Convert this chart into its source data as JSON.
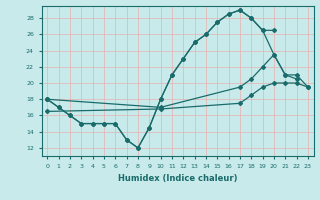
{
  "xlabel": "Humidex (Indice chaleur)",
  "xlim": [
    -0.5,
    23.5
  ],
  "ylim": [
    11,
    29.5
  ],
  "yticks": [
    12,
    14,
    16,
    18,
    20,
    22,
    24,
    26,
    28
  ],
  "xticks": [
    0,
    1,
    2,
    3,
    4,
    5,
    6,
    7,
    8,
    9,
    10,
    11,
    12,
    13,
    14,
    15,
    16,
    17,
    18,
    19,
    20,
    21,
    22,
    23
  ],
  "bg_color": "#c8eaea",
  "grid_color": "#e8b0b0",
  "line_color": "#1a6b6b",
  "line1_x": [
    0,
    1,
    2,
    3,
    4,
    5,
    6,
    7,
    8,
    9,
    10,
    11,
    12,
    13,
    14,
    15,
    16,
    17,
    18,
    19,
    20,
    21,
    22
  ],
  "line1_y": [
    18,
    17,
    16,
    15,
    15,
    15,
    15,
    13,
    12,
    14.5,
    18,
    21,
    23,
    25,
    26,
    27.5,
    28.5,
    29,
    28,
    26.5,
    23.5,
    21,
    20.5
  ],
  "line2_x": [
    0,
    1,
    2,
    3,
    4,
    5,
    6,
    7,
    8,
    9,
    10,
    11,
    12,
    13,
    14,
    15,
    16,
    17,
    18,
    19,
    20
  ],
  "line2_y": [
    18,
    17,
    16,
    15,
    15,
    15,
    15,
    13,
    12,
    14.5,
    18,
    21,
    23,
    25,
    26,
    27.5,
    28.5,
    29,
    28,
    26.5,
    26.5
  ],
  "line3_x": [
    0,
    10,
    17,
    18,
    19,
    20,
    21,
    22,
    23
  ],
  "line3_y": [
    18,
    17,
    19.5,
    20.5,
    22,
    23.5,
    21,
    21,
    19.5
  ],
  "line4_x": [
    0,
    10,
    17,
    18,
    19,
    20,
    21,
    22,
    23
  ],
  "line4_y": [
    16.5,
    16.8,
    17.5,
    18.5,
    19.5,
    20,
    20,
    20,
    19.5
  ]
}
